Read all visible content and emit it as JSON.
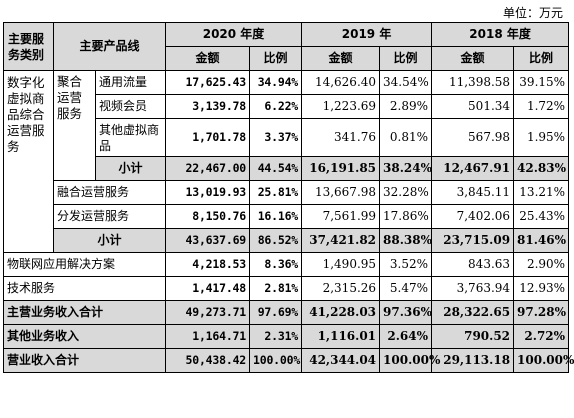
{
  "unit_note": "单位：万元",
  "headers": {
    "category": "主要服务类别",
    "product_line": "主要产品线",
    "year_2020": "2020 年度",
    "year_2019": "2019 年",
    "year_2018": "2018 年度",
    "amount": "金额",
    "ratio": "比例"
  },
  "groups": {
    "digital_goods": "数字化虚拟商品综合运营服务",
    "aggregated_ops": "聚合运营服务"
  },
  "rows": {
    "traffic": {
      "label": "通用流量",
      "v2020": "17,625.43",
      "r2020": "34.94%",
      "v2019": "14,626.40",
      "r2019": "34.54%",
      "v2018": "11,398.58",
      "r2018": "39.15%"
    },
    "video": {
      "label": "视频会员",
      "v2020": "3,139.78",
      "r2020": "6.22%",
      "v2019": "1,223.69",
      "r2019": "2.89%",
      "v2018": "501.34",
      "r2018": "1.72%"
    },
    "other_virtual": {
      "label": "其他虚拟商品",
      "v2020": "1,701.78",
      "r2020": "3.37%",
      "v2019": "341.76",
      "r2019": "0.81%",
      "v2018": "567.98",
      "r2018": "1.95%"
    },
    "subtotal_agg": {
      "label": "小计",
      "v2020": "22,467.00",
      "r2020": "44.54%",
      "v2019": "16,191.85",
      "r2019": "38.24%",
      "v2018": "12,467.91",
      "r2018": "42.83%"
    },
    "fusion": {
      "label": "融合运营服务",
      "v2020": "13,019.93",
      "r2020": "25.81%",
      "v2019": "13,667.98",
      "r2019": "32.28%",
      "v2018": "3,845.11",
      "r2018": "13.21%"
    },
    "distribution": {
      "label": "分发运营服务",
      "v2020": "8,150.76",
      "r2020": "16.16%",
      "v2019": "7,561.99",
      "r2019": "17.86%",
      "v2018": "7,402.06",
      "r2018": "25.43%"
    },
    "subtotal_digital": {
      "label": "小计",
      "v2020": "43,637.69",
      "r2020": "86.52%",
      "v2019": "37,421.82",
      "r2019": "88.38%",
      "v2018": "23,715.09",
      "r2018": "81.46%"
    },
    "iot": {
      "label": "物联网应用解决方案",
      "v2020": "4,218.53",
      "r2020": "8.36%",
      "v2019": "1,490.95",
      "r2019": "3.52%",
      "v2018": "843.63",
      "r2018": "2.90%"
    },
    "tech": {
      "label": "技术服务",
      "v2020": "1,417.48",
      "r2020": "2.81%",
      "v2019": "2,315.26",
      "r2019": "5.47%",
      "v2018": "3,763.94",
      "r2018": "12.93%"
    },
    "main_total": {
      "label": "主营业务收入合计",
      "v2020": "49,273.71",
      "r2020": "97.69%",
      "v2019": "41,228.03",
      "r2019": "97.36%",
      "v2018": "28,322.65",
      "r2018": "97.28%"
    },
    "other_income": {
      "label": "其他业务收入",
      "v2020": "1,164.71",
      "r2020": "2.31%",
      "v2019": "1,116.01",
      "r2019": "2.64%",
      "v2018": "790.52",
      "r2018": "2.72%"
    },
    "total": {
      "label": "营业收入合计",
      "v2020": "50,438.42",
      "r2020": "100.00%",
      "v2019": "42,344.04",
      "r2019": "100.00%",
      "v2018": "29,113.18",
      "r2018": "100.00%"
    }
  }
}
